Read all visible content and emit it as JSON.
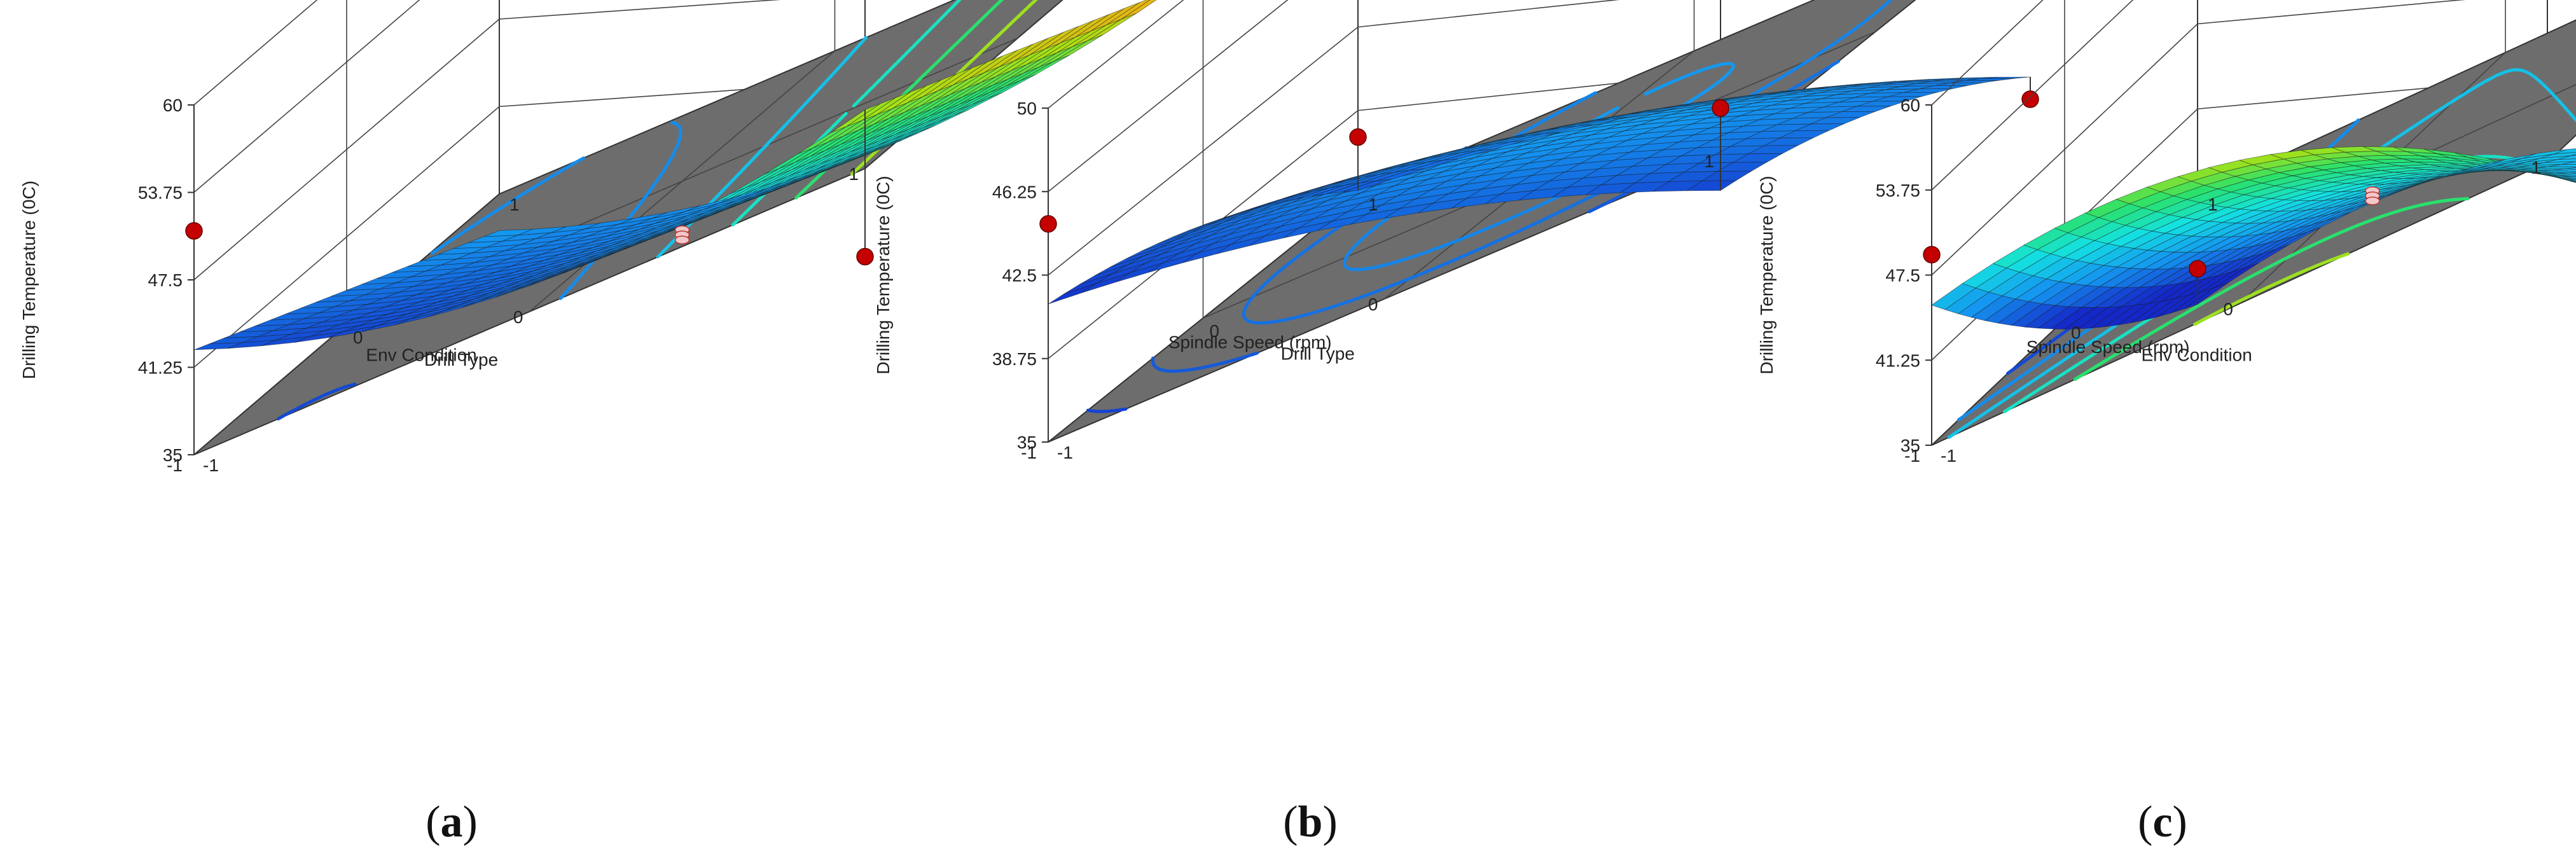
{
  "chart_data": [
    {
      "type": "surface",
      "caption": "a",
      "zlabel": "Drilling Temperature (0C)",
      "xlabel": "Env Condition",
      "ylabel": "Drill Type",
      "zticks": [
        "60",
        "53.75",
        "47.5",
        "41.25",
        "35"
      ],
      "zlim": [
        35,
        60
      ],
      "xticks": [
        "1",
        "0",
        "-1"
      ],
      "yticks": [
        "-1",
        "0",
        "1"
      ],
      "xlim": [
        -1,
        1
      ],
      "ylim": [
        -1,
        1
      ],
      "colormap_range": [
        41,
        56
      ],
      "surface_model": {
        "c": 44.5,
        "a": 1.0,
        "b": 5.0,
        "ab": 0.0,
        "aa": 0.0,
        "bb": 4.0
      },
      "contour_levels": [
        42,
        44,
        46,
        48,
        50,
        52,
        54
      ],
      "design_points": [
        {
          "a": -1,
          "b": -1,
          "value": 51.0
        },
        {
          "a": 1,
          "b": 1,
          "value": 55.0
        },
        {
          "a": -1,
          "b": 1,
          "value": 42.0
        },
        {
          "a": 0,
          "b": 0,
          "value": 44.6
        }
      ]
    },
    {
      "type": "surface",
      "caption": "b",
      "zlabel": "Drilling Temperature (0C)",
      "xlabel": "Spindle Speed (rpm)",
      "ylabel": "Drill Type",
      "zticks": [
        "50",
        "46.25",
        "42.5",
        "38.75",
        "35"
      ],
      "zlim": [
        35,
        50
      ],
      "xticks": [
        "1",
        "0",
        "-1"
      ],
      "yticks": [
        "-1",
        "0",
        "1"
      ],
      "xlim": [
        -1,
        1
      ],
      "ylim": [
        -1,
        1
      ],
      "colormap_range": [
        41,
        56
      ],
      "surface_model": {
        "c": 44.4,
        "a": 0.6,
        "b": 0.3,
        "ab": 0.0,
        "aa": -1.0,
        "bb": -1.3
      },
      "contour_levels": [
        41.8,
        42.5,
        43.2,
        43.8,
        44.4
      ],
      "design_points": [
        {
          "a": 1,
          "b": -1,
          "value": 44.8
        },
        {
          "a": -1,
          "b": 1,
          "value": 45.5
        },
        {
          "a": -1,
          "b": -1,
          "value": 44.8
        },
        {
          "a": 1,
          "b": 1,
          "value": 42.0
        }
      ]
    },
    {
      "type": "surface",
      "caption": "c",
      "zlabel": "Drilling Temperature (0C)",
      "xlabel": "Spindle Speed (rpm)",
      "ylabel": "Env Condition",
      "zticks": [
        "60",
        "53.75",
        "47.5",
        "41.25",
        "35"
      ],
      "zlim": [
        35,
        60
      ],
      "xticks": [
        "1",
        "0",
        "-1"
      ],
      "yticks": [
        "-1",
        "0",
        "1"
      ],
      "xlim": [
        -1,
        1
      ],
      "ylim": [
        -1,
        1
      ],
      "colormap_range": [
        41,
        56
      ],
      "surface_model": {
        "c": 47.3,
        "a": -3.2,
        "b": 1.2,
        "ab": 0.0,
        "aa": 1.8,
        "bb": -5.8
      },
      "contour_levels": [
        40,
        42,
        44,
        46,
        48,
        50,
        52
      ],
      "design_points": [
        {
          "a": 1,
          "b": 1,
          "value": 53.5
        },
        {
          "a": -1,
          "b": -1,
          "value": 49.0
        },
        {
          "a": 1,
          "b": -1,
          "value": 41.5
        },
        {
          "a": 0,
          "b": 0,
          "value": 47.2
        }
      ]
    }
  ]
}
